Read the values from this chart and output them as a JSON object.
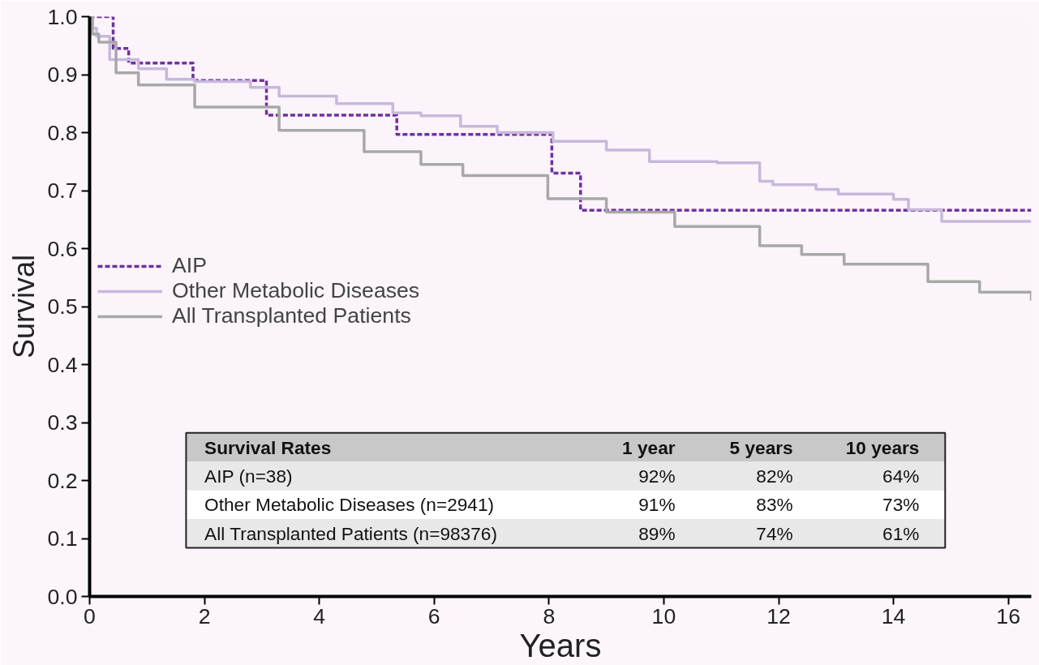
{
  "chart_data": {
    "type": "step",
    "xlabel": "Years",
    "ylabel": "Survival",
    "xlim": [
      0,
      16.4
    ],
    "ylim": [
      0,
      1.0
    ],
    "xticks": [
      0,
      2,
      4,
      6,
      8,
      10,
      12,
      14,
      16
    ],
    "yticks": [
      {
        "value": 0,
        "label": "0.0"
      },
      {
        "value": 0.1,
        "label": "0.1"
      },
      {
        "value": 0.2,
        "label": "0.2"
      },
      {
        "value": 0.3,
        "label": "0.3"
      },
      {
        "value": 0.4,
        "label": "0.4"
      },
      {
        "value": 0.5,
        "label": "0.5"
      },
      {
        "value": 0.6,
        "label": "0.6"
      },
      {
        "value": 0.7,
        "label": "0.7"
      },
      {
        "value": 0.8,
        "label": "0.8"
      },
      {
        "value": 0.9,
        "label": "0.9"
      },
      {
        "value": 1.0,
        "label": "1.0"
      }
    ],
    "grid": false,
    "legend": "left",
    "series": [
      {
        "name": "AIP",
        "color": "#7030a0",
        "line_style": "dashed",
        "x": [
          0,
          0.41,
          0.68,
          1.8,
          3.08,
          5.35,
          8.05,
          8.55,
          16.4
        ],
        "values": [
          1.0,
          0.945,
          0.92,
          0.89,
          0.83,
          0.797,
          0.73,
          0.666,
          0.666
        ]
      },
      {
        "name": "Other Metabolic Diseases",
        "color": "#c8b8dc",
        "line_style": "solid",
        "x": [
          0,
          0.05,
          0.12,
          0.35,
          0.85,
          1.34,
          1.83,
          2.8,
          3.3,
          4.3,
          5.28,
          5.77,
          6.46,
          7.1,
          8.07,
          9.0,
          9.75,
          10.93,
          11.67,
          11.9,
          12.65,
          13.04,
          14.0,
          14.26,
          14.84,
          16.4
        ],
        "values": [
          1.0,
          0.98,
          0.966,
          0.926,
          0.91,
          0.892,
          0.888,
          0.878,
          0.863,
          0.85,
          0.834,
          0.829,
          0.811,
          0.8,
          0.785,
          0.77,
          0.75,
          0.748,
          0.716,
          0.71,
          0.702,
          0.694,
          0.685,
          0.667,
          0.647,
          0.647
        ]
      },
      {
        "name": "All Transplanted Patients",
        "color": "#a8a8a8",
        "line_style": "solid",
        "x": [
          0,
          0.05,
          0.16,
          0.46,
          0.85,
          1.83,
          3.3,
          4.78,
          5.77,
          6.5,
          7.98,
          9.0,
          10.19,
          11.67,
          12.4,
          13.14,
          14.6,
          15.5,
          16.4
        ],
        "values": [
          1.0,
          0.97,
          0.956,
          0.903,
          0.882,
          0.844,
          0.804,
          0.767,
          0.745,
          0.726,
          0.686,
          0.663,
          0.638,
          0.605,
          0.59,
          0.573,
          0.543,
          0.525,
          0.51
        ]
      }
    ],
    "annotations": [
      "Survival Rates",
      "1 year",
      "5 years",
      "10 years",
      "AIP (n=38)",
      "92%",
      "82%",
      "64%",
      "Other Metabolic Diseases (n=2941)",
      "91%",
      "83%",
      "73%",
      "All Transplanted Patients (n=98376)",
      "89%",
      "74%",
      "61%"
    ]
  }
}
